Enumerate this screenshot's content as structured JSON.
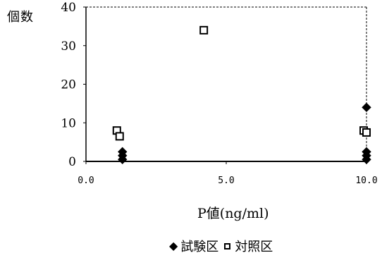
{
  "chart_data": {
    "type": "scatter",
    "title": "",
    "ylabel": "個数",
    "xlabel": "P値(ng/ml)",
    "xlim": [
      0,
      10
    ],
    "ylim": [
      0,
      40
    ],
    "xticks": [
      "0.0",
      "5.0",
      "10.0"
    ],
    "yticks": [
      "0",
      "10",
      "20",
      "30",
      "40"
    ],
    "grid": false,
    "legend_position": "bottom",
    "series": [
      {
        "name": "試験区",
        "marker": "diamond",
        "color": "#000000",
        "points": [
          {
            "x": 1.3,
            "y": 2.5
          },
          {
            "x": 1.3,
            "y": 1.5
          },
          {
            "x": 1.3,
            "y": 0.5
          },
          {
            "x": 10.0,
            "y": 14
          },
          {
            "x": 10.0,
            "y": 2.5
          },
          {
            "x": 10.0,
            "y": 1.5
          },
          {
            "x": 10.0,
            "y": 0.5
          }
        ]
      },
      {
        "name": "対照区",
        "marker": "square",
        "color": "#000000",
        "points": [
          {
            "x": 1.1,
            "y": 8
          },
          {
            "x": 1.2,
            "y": 6.5
          },
          {
            "x": 4.2,
            "y": 34
          },
          {
            "x": 9.9,
            "y": 8
          },
          {
            "x": 10.0,
            "y": 7.5
          }
        ]
      }
    ]
  }
}
